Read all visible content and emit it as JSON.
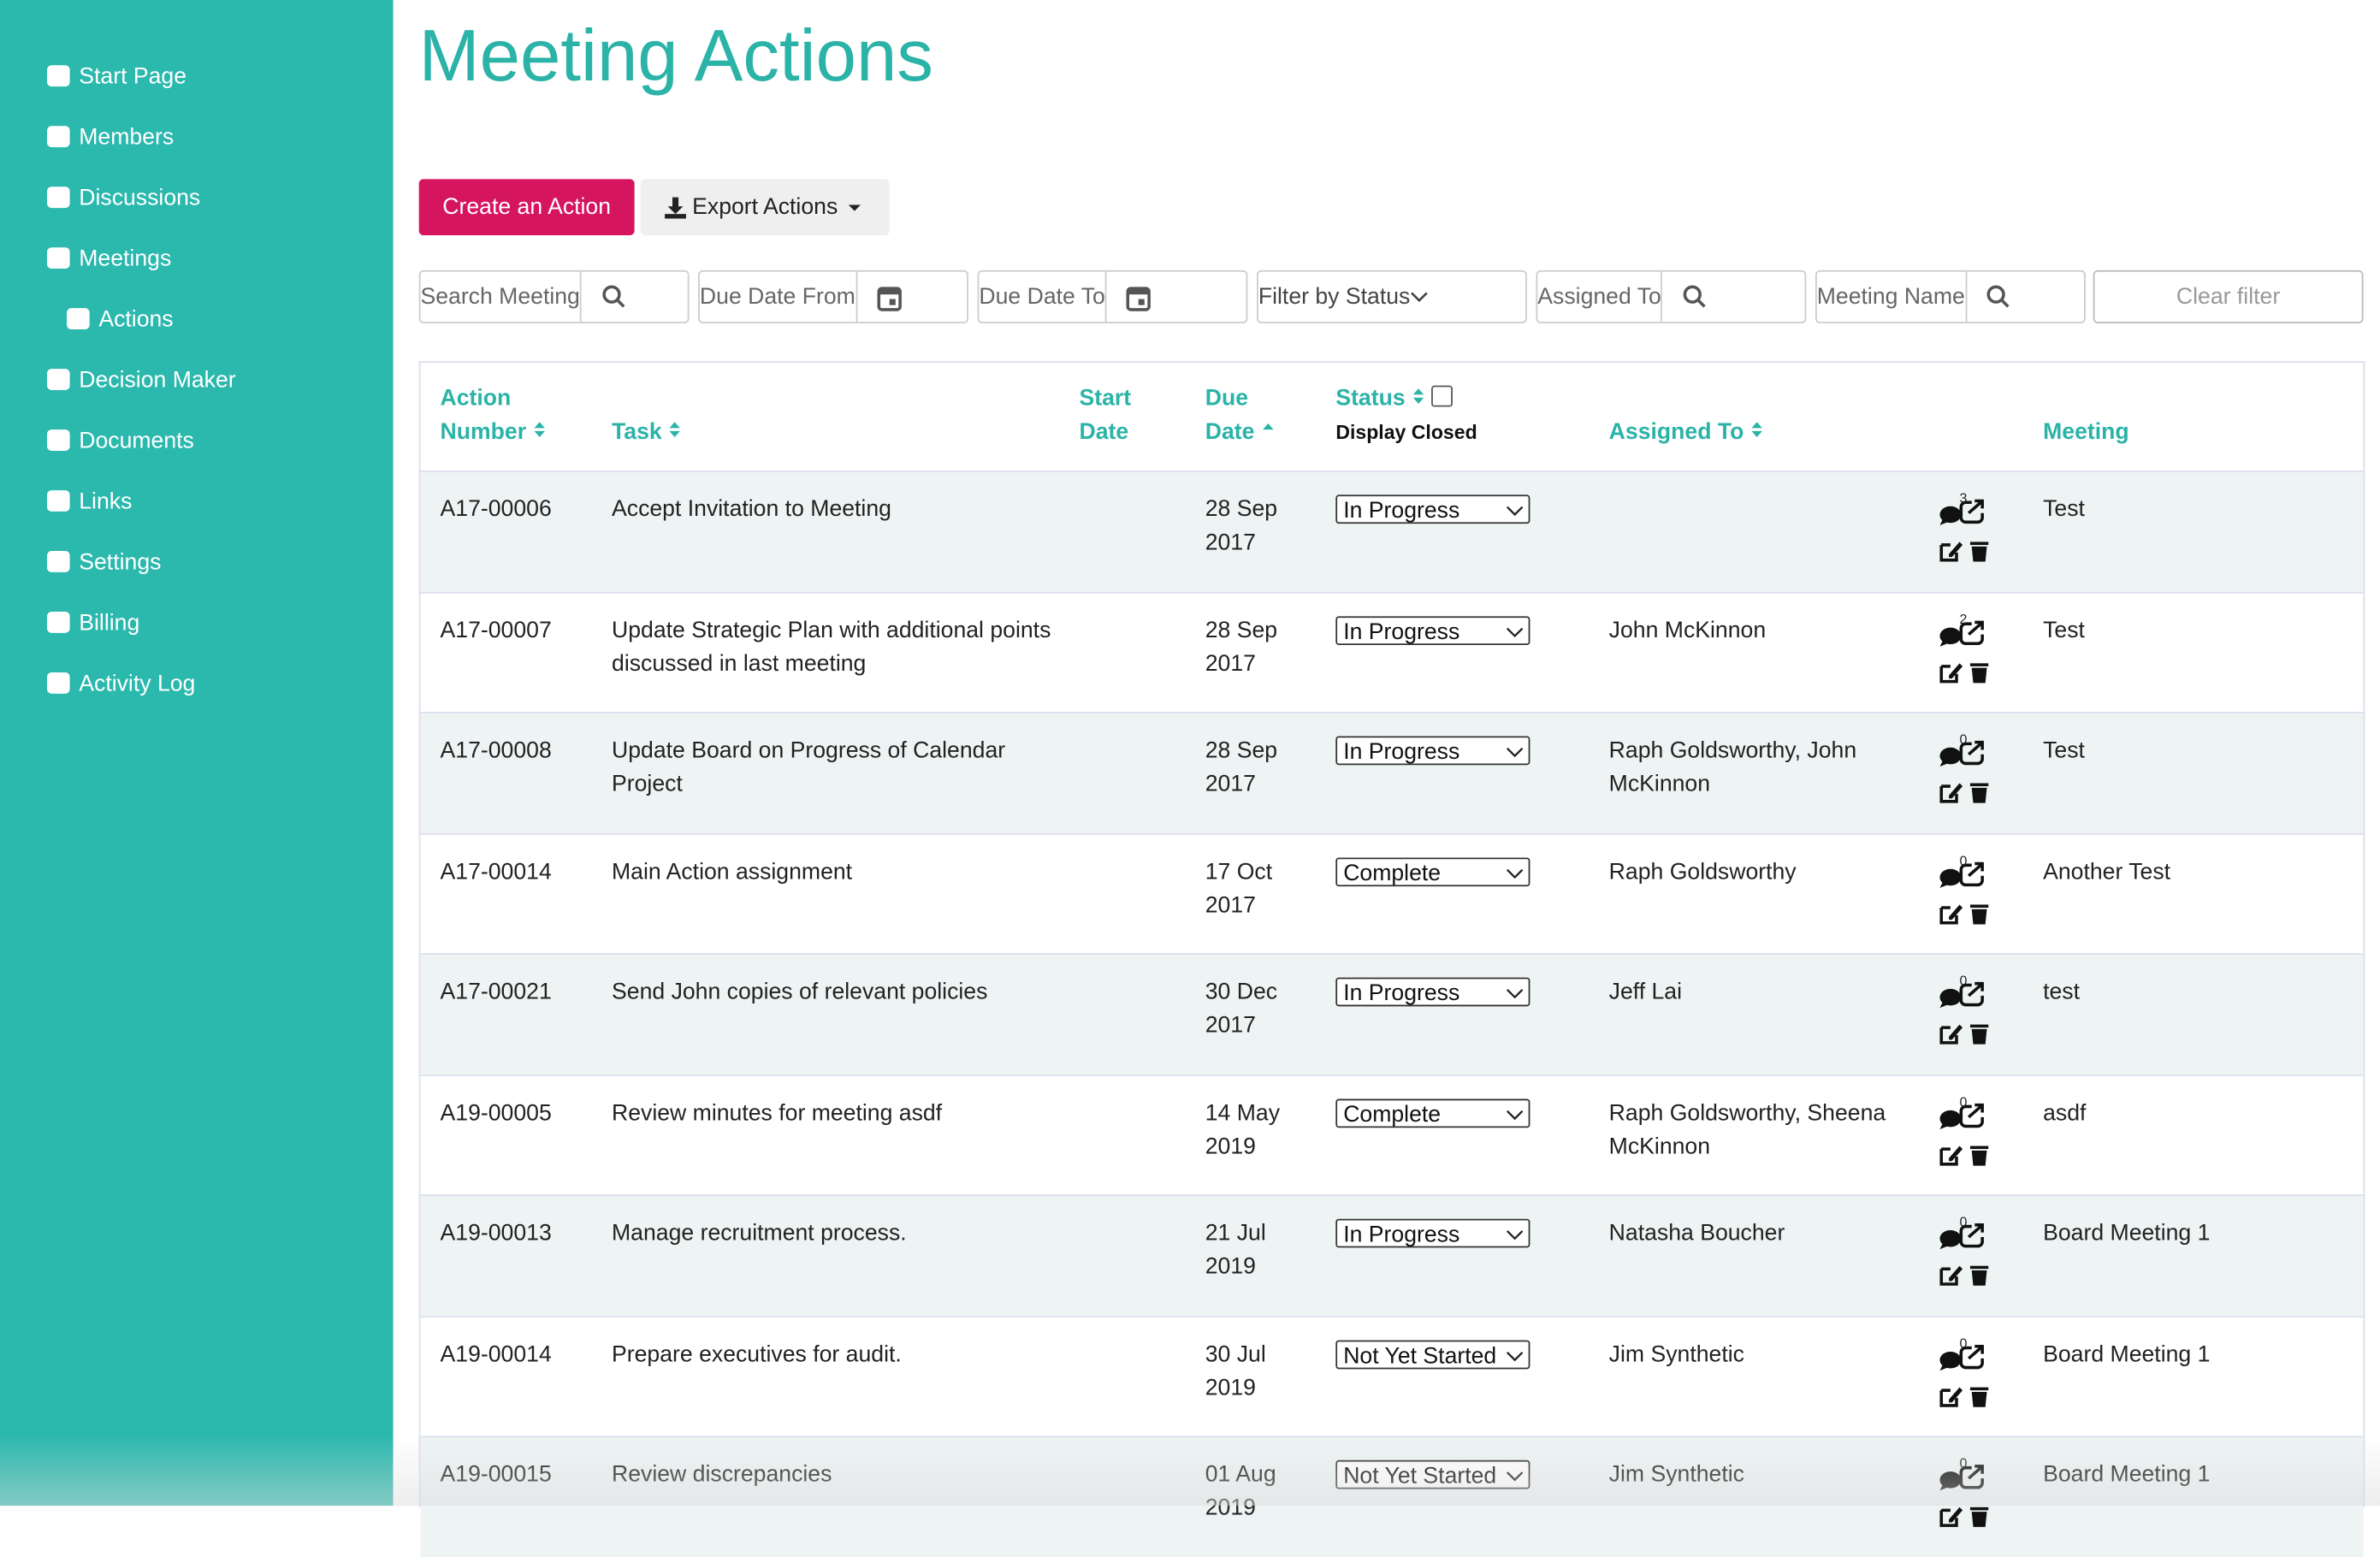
{
  "sidebar": {
    "items": [
      "Start Page",
      "Members",
      "Discussions",
      "Meetings",
      "Actions",
      "Decision Maker",
      "Documents",
      "Links",
      "Settings",
      "Billing",
      "Activity Log"
    ]
  },
  "header": {
    "title": "Meeting Actions"
  },
  "buttons": {
    "create": "Create an Action",
    "export": "Export Actions"
  },
  "filters": {
    "search_meeting": "Search Meeting",
    "due_from": "Due Date From",
    "due_to": "Due Date To",
    "status": "Filter by Status",
    "assigned_to": "Assigned To",
    "meeting_name": "Meeting Name",
    "clear": "Clear filter"
  },
  "table": {
    "headers": {
      "action_number": "Action Number",
      "task": "Task",
      "start_date": "Start Date",
      "due_date": "Due Date",
      "status": "Status",
      "display_closed": "Display Closed",
      "assigned_to": "Assigned To",
      "meeting": "Meeting"
    },
    "rows": [
      {
        "number": "A17-00006",
        "task": "Accept Invitation to Meeting",
        "due": "28 Sep 2017",
        "status": "In Progress",
        "comments": "3",
        "meeting": "Test"
      },
      {
        "number": "A17-00007",
        "task": "Update Strategic Plan with additional points discussed in last meeting",
        "due": "28 Sep 2017",
        "status": "In Progress",
        "assigned": "John McKinnon",
        "comments": "2",
        "meeting": "Test"
      },
      {
        "number": "A17-00008",
        "task": "Update Board on Progress of Calendar Project",
        "due": "28 Sep 2017",
        "status": "In Progress",
        "assigned": "Raph Goldsworthy, John McKinnon",
        "comments": "0",
        "meeting": "Test"
      },
      {
        "number": "A17-00014",
        "task": "Main Action assignment",
        "due": "17 Oct 2017",
        "status": "Complete",
        "assigned": "Raph Goldsworthy",
        "comments": "0",
        "meeting": "Another Test"
      },
      {
        "number": "A17-00021",
        "task": "Send John copies of relevant policies",
        "due": "30 Dec 2017",
        "status": "In Progress",
        "assigned": "Jeff Lai",
        "comments": "0",
        "meeting": "test"
      },
      {
        "number": "A19-00005",
        "task": "Review minutes for meeting asdf",
        "due": "14 May 2019",
        "status": "Complete",
        "assigned": "Raph Goldsworthy, Sheena McKinnon",
        "comments": "0",
        "meeting": "asdf"
      },
      {
        "number": "A19-00013",
        "task": "Manage recruitment process.",
        "due": "21 Jul 2019",
        "status": "In Progress",
        "assigned": "Natasha Boucher",
        "comments": "0",
        "meeting": "Board Meeting 1"
      },
      {
        "number": "A19-00014",
        "task": "Prepare executives for audit.",
        "due": "30 Jul 2019",
        "status": "Not Yet Started",
        "assigned": "Jim Synthetic",
        "comments": "0",
        "meeting": "Board Meeting 1"
      },
      {
        "number": "A19-00015",
        "task": "Review discrepancies",
        "due": "01 Aug 2019",
        "status": "Not Yet Started",
        "assigned": "Jim Synthetic",
        "comments": "0",
        "meeting": "Board Meeting 1"
      }
    ]
  }
}
